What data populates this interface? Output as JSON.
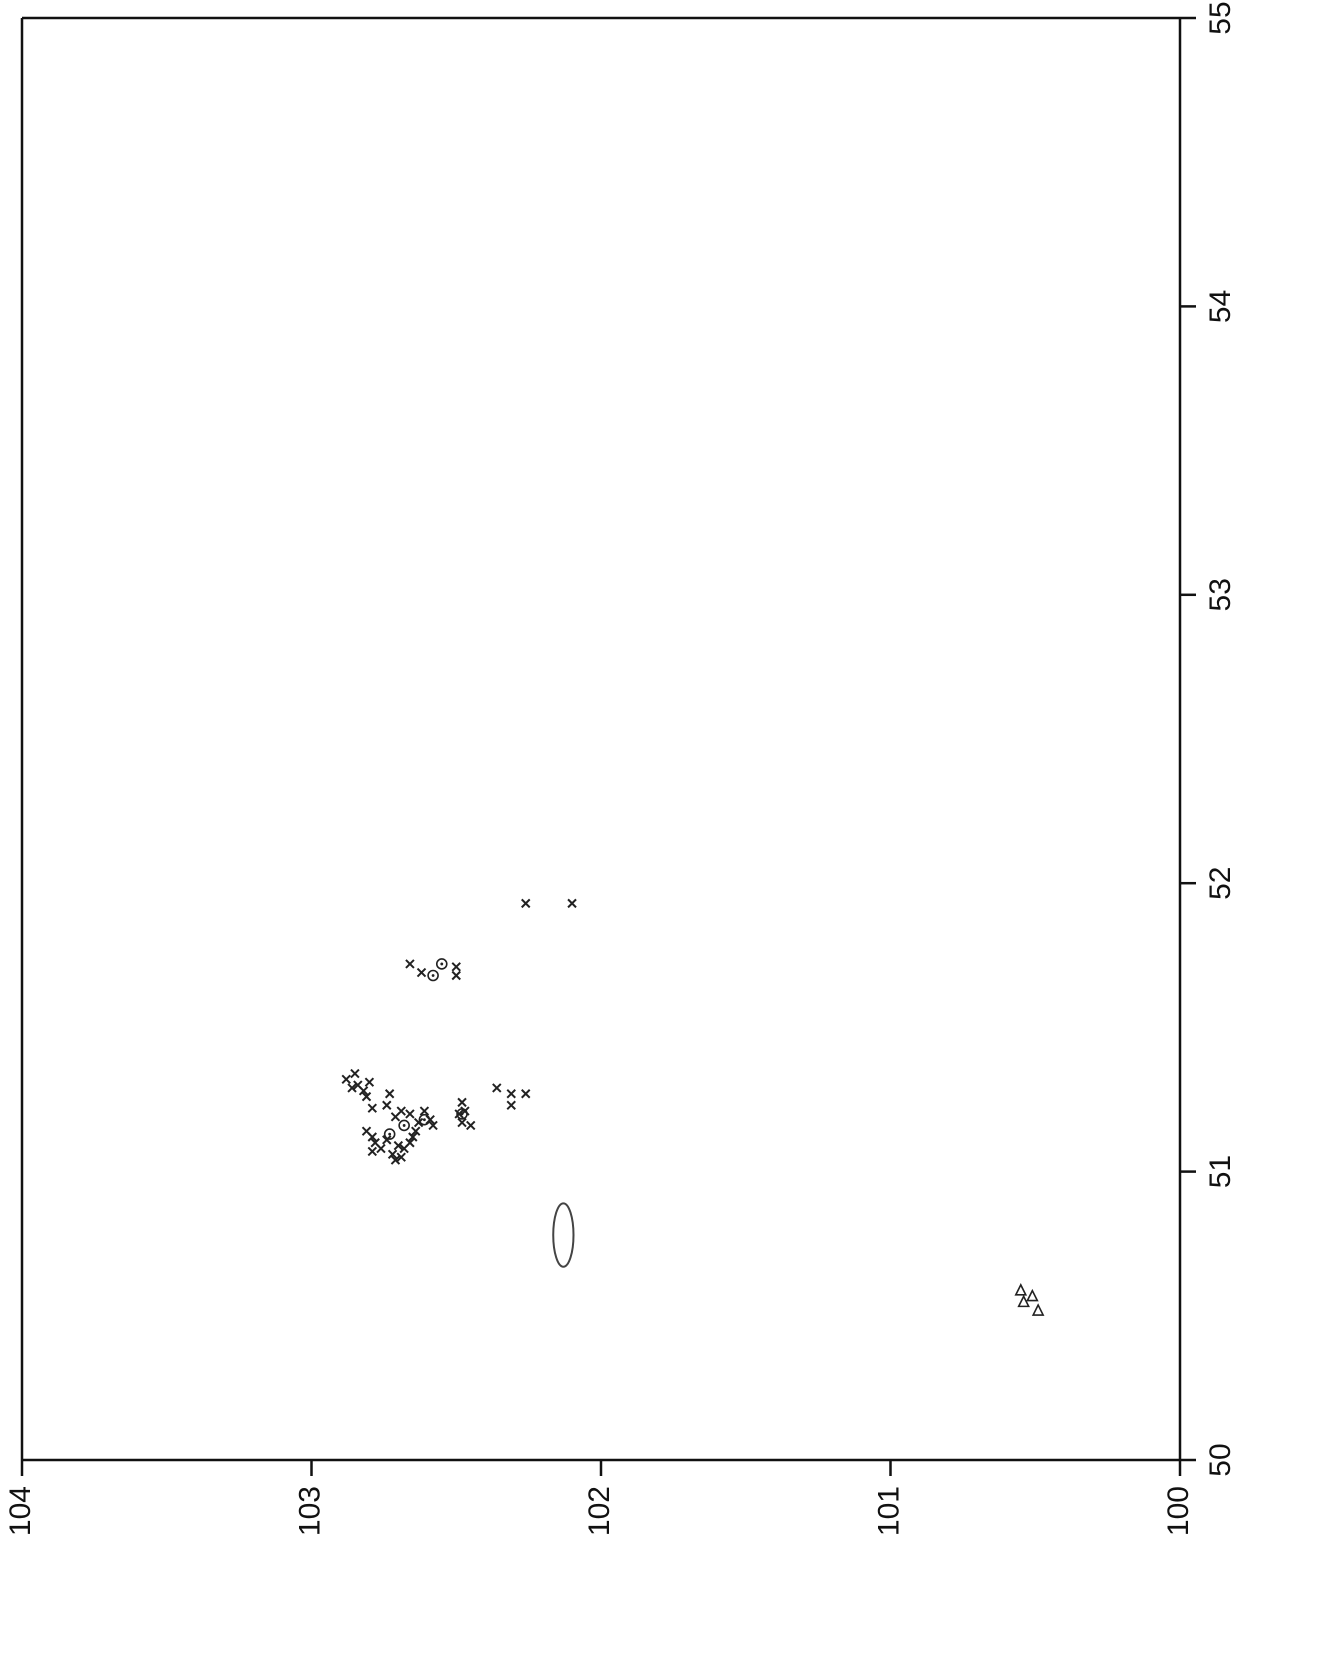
{
  "chart_data": {
    "type": "scatter",
    "orientation": "rotated-90",
    "title": "",
    "xlabel": "",
    "ylabel": "",
    "xlim": [
      50,
      55
    ],
    "ylim": [
      100,
      104
    ],
    "x_ticks": [
      "50",
      "51",
      "52",
      "53",
      "54",
      "55"
    ],
    "y_ticks": [
      "104",
      "103",
      "102",
      "101",
      "100"
    ],
    "grid": false,
    "legend": "none",
    "colors": {
      "marker": "#222222",
      "axis": "#111111",
      "faint": "#bbbbbb"
    },
    "series": [
      {
        "marker": "x",
        "points": [
          [
            51.32,
            102.88
          ],
          [
            51.34,
            102.85
          ],
          [
            51.3,
            102.84
          ],
          [
            51.28,
            102.82
          ],
          [
            51.31,
            102.8
          ],
          [
            51.29,
            102.86
          ],
          [
            51.26,
            102.81
          ],
          [
            51.22,
            102.79
          ],
          [
            51.27,
            102.73
          ],
          [
            51.23,
            102.74
          ],
          [
            51.19,
            102.71
          ],
          [
            51.21,
            102.69
          ],
          [
            51.2,
            102.66
          ],
          [
            51.21,
            102.61
          ],
          [
            51.17,
            102.63
          ],
          [
            51.14,
            102.81
          ],
          [
            51.12,
            102.79
          ],
          [
            51.1,
            102.78
          ],
          [
            51.08,
            102.76
          ],
          [
            51.07,
            102.79
          ],
          [
            51.11,
            102.74
          ],
          [
            51.09,
            102.7
          ],
          [
            51.06,
            102.72
          ],
          [
            51.05,
            102.69
          ],
          [
            51.08,
            102.68
          ],
          [
            51.04,
            102.71
          ],
          [
            51.12,
            102.65
          ],
          [
            51.1,
            102.66
          ],
          [
            51.14,
            102.64
          ],
          [
            51.16,
            102.58
          ],
          [
            51.18,
            102.59
          ],
          [
            51.2,
            102.49
          ],
          [
            51.24,
            102.48
          ],
          [
            51.21,
            102.47
          ],
          [
            51.17,
            102.48
          ],
          [
            51.16,
            102.45
          ],
          [
            51.29,
            102.36
          ],
          [
            51.27,
            102.31
          ],
          [
            51.23,
            102.31
          ],
          [
            51.27,
            102.26
          ],
          [
            51.72,
            102.66
          ],
          [
            51.69,
            102.62
          ],
          [
            51.71,
            102.5
          ],
          [
            51.68,
            102.5
          ],
          [
            51.93,
            102.26
          ],
          [
            51.93,
            102.1
          ]
        ]
      },
      {
        "marker": "circle",
        "points": [
          [
            51.68,
            102.58
          ],
          [
            51.72,
            102.55
          ],
          [
            51.18,
            102.61
          ],
          [
            51.16,
            102.68
          ],
          [
            51.2,
            102.48
          ],
          [
            51.13,
            102.73
          ]
        ]
      },
      {
        "marker": "triangle",
        "points": [
          [
            50.55,
            100.54
          ],
          [
            50.52,
            100.49
          ],
          [
            50.57,
            100.51
          ],
          [
            50.59,
            100.55
          ]
        ]
      }
    ],
    "annotations": [
      {
        "shape": "ellipse",
        "center": [
          50.78,
          102.13
        ],
        "rx_data": 0.11,
        "ry_data": 0.035
      }
    ]
  }
}
